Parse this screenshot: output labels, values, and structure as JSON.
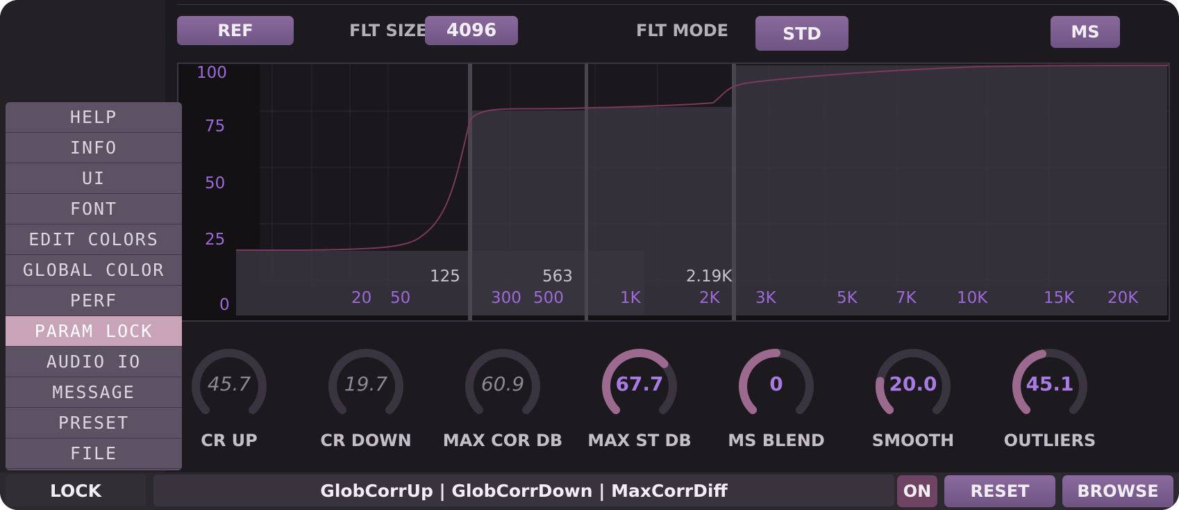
{
  "toolbar": {
    "ref_label": "REF",
    "flt_size_label": "FLT SIZE",
    "flt_size_value": "4096",
    "flt_mode_label": "FLT MODE",
    "flt_mode_value": "STD",
    "ms_label": "MS"
  },
  "graph": {
    "y_ticks": [
      "100",
      "75",
      "50",
      "25",
      "0"
    ],
    "x_ticks": [
      "20",
      "50",
      "300",
      "500",
      "1K",
      "2K",
      "3K",
      "5K",
      "7K",
      "10K",
      "15K",
      "20K"
    ],
    "band_labels": [
      "125",
      "563",
      "2.19K"
    ]
  },
  "menu": {
    "items": [
      "HELP",
      "INFO",
      "UI",
      "FONT",
      "EDIT COLORS",
      "GLOBAL COLOR",
      "PERF",
      "PARAM LOCK",
      "AUDIO IO",
      "MESSAGE",
      "PRESET",
      "FILE"
    ],
    "active": "PARAM LOCK"
  },
  "knobs": [
    {
      "label": "CR UP",
      "value": "45.7",
      "level": 0.457,
      "active": false
    },
    {
      "label": "CR DOWN",
      "value": "19.7",
      "level": 0.197,
      "active": false
    },
    {
      "label": "MAX COR DB",
      "value": "60.9",
      "level": 0.609,
      "active": false
    },
    {
      "label": "MAX ST DB",
      "value": "67.7",
      "level": 0.677,
      "active": true
    },
    {
      "label": "MS BLEND",
      "value": "0",
      "level": 0.5,
      "active": true
    },
    {
      "label": "SMOOTH",
      "value": "20.0",
      "level": 0.2,
      "active": true
    },
    {
      "label": "OUTLIERS",
      "value": "45.1",
      "level": 0.451,
      "active": true
    }
  ],
  "bottom": {
    "lock_label": "LOCK",
    "params_text": "GlobCorrUp | GlobCorrDown | MaxCorrDiff",
    "on_label": "ON",
    "reset_label": "RESET",
    "browse_label": "BROWSE"
  },
  "colors": {
    "accent_purple": "#8b6a9e",
    "value_purple": "#a77be0",
    "menu_active": "#c9a3b8",
    "curve": "#7a3a5e",
    "knob_arc": "#9c6a8e"
  }
}
